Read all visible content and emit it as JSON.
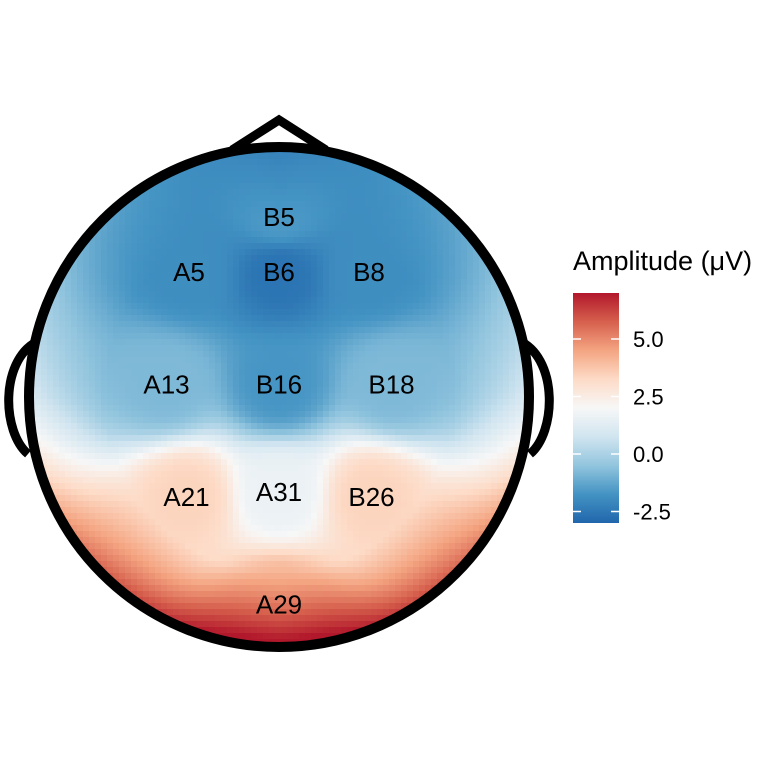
{
  "chart_data": {
    "type": "heatmap",
    "subtype": "eeg-topographic-map",
    "title": "",
    "legend": {
      "title": "Amplitude (μV)",
      "placement": "right",
      "ticks": [
        {
          "value": 5.0,
          "label": "5.0"
        },
        {
          "value": 2.5,
          "label": "2.5"
        },
        {
          "value": 0.0,
          "label": "0.0"
        },
        {
          "value": -2.5,
          "label": "-2.5"
        }
      ],
      "range": [
        -3.0,
        7.0
      ]
    },
    "colormap": [
      "#2166ac",
      "#4393c3",
      "#92c5de",
      "#d1e5f0",
      "#f7f7f7",
      "#fddbc7",
      "#f4a582",
      "#d6604d",
      "#b2182b"
    ],
    "electrodes": [
      {
        "label": "B5",
        "x": 0.0,
        "y": 0.72,
        "value": -1.6
      },
      {
        "label": "A5",
        "x": -0.36,
        "y": 0.5,
        "value": -1.9
      },
      {
        "label": "B6",
        "x": 0.0,
        "y": 0.5,
        "value": -2.6
      },
      {
        "label": "B8",
        "x": 0.36,
        "y": 0.5,
        "value": -1.9
      },
      {
        "label": "A13",
        "x": -0.45,
        "y": 0.05,
        "value": -0.8
      },
      {
        "label": "B16",
        "x": 0.0,
        "y": 0.05,
        "value": -1.7
      },
      {
        "label": "B18",
        "x": 0.45,
        "y": 0.05,
        "value": -0.8
      },
      {
        "label": "A21",
        "x": -0.37,
        "y": -0.4,
        "value": 3.4
      },
      {
        "label": "A31",
        "x": 0.0,
        "y": -0.38,
        "value": 1.6
      },
      {
        "label": "B26",
        "x": 0.37,
        "y": -0.4,
        "value": 3.4
      },
      {
        "label": "A29",
        "x": 0.0,
        "y": -0.83,
        "value": 4.2
      }
    ]
  }
}
